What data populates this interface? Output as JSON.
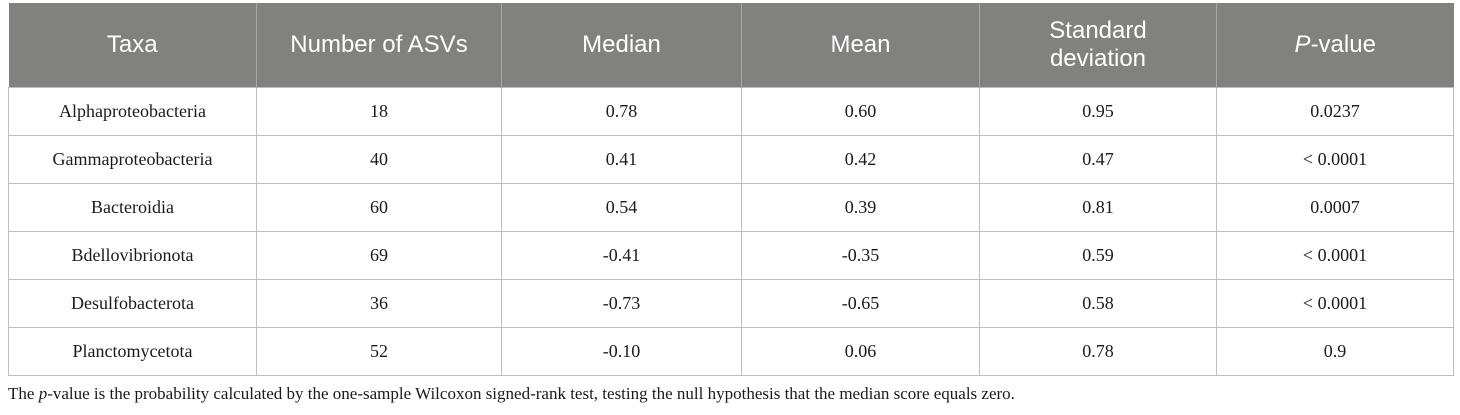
{
  "table": {
    "headers": [
      "Taxa",
      "Number of ASVs",
      "Median",
      "Mean",
      "Standard deviation",
      "-value"
    ],
    "header_p_prefix": "P",
    "rows": [
      [
        "Alphaproteobacteria",
        "18",
        "0.78",
        "0.60",
        "0.95",
        "0.0237"
      ],
      [
        "Gammaproteobacteria",
        "40",
        "0.41",
        "0.42",
        "0.47",
        "< 0.0001"
      ],
      [
        "Bacteroidia",
        "60",
        "0.54",
        "0.39",
        "0.81",
        "0.0007"
      ],
      [
        "Bdellovibrionota",
        "69",
        "-0.41",
        "-0.35",
        "0.59",
        "< 0.0001"
      ],
      [
        "Desulfobacterota",
        "36",
        "-0.73",
        "-0.65",
        "0.58",
        "< 0.0001"
      ],
      [
        "Planctomycetota",
        "52",
        "-0.10",
        "0.06",
        "0.78",
        "0.9"
      ]
    ]
  },
  "footnote": {
    "prefix": "The ",
    "italic": "p",
    "rest": "-value is the probability calculated by the one-sample Wilcoxon signed-rank test, testing the null hypothesis that the median score equals zero."
  }
}
